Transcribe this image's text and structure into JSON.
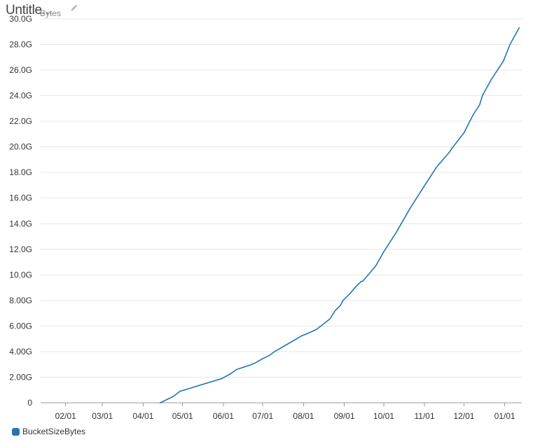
{
  "header": {
    "title": "Untitle...",
    "y_unit": "Bytes",
    "edit_icon": "pencil-icon"
  },
  "colors": {
    "series": "#2176b4",
    "grid": "#e6e6e6",
    "axis": "#999999"
  },
  "chart_data": {
    "type": "line",
    "title": "Untitle...",
    "xlabel": "",
    "ylabel": "Bytes",
    "grid": true,
    "legend_position": "bottom-left",
    "x_tick_labels": [
      "02/01",
      "03/01",
      "04/01",
      "05/01",
      "06/01",
      "07/01",
      "08/01",
      "09/01",
      "10/01",
      "11/01",
      "12/01",
      "01/01"
    ],
    "x_tick_dates": [
      "2017-02-01",
      "2017-03-01",
      "2017-04-01",
      "2017-05-01",
      "2017-06-01",
      "2017-07-01",
      "2017-08-01",
      "2017-09-01",
      "2017-10-01",
      "2017-11-01",
      "2017-12-01",
      "2018-01-01"
    ],
    "xlim": [
      "2017-01-13",
      "2018-01-14"
    ],
    "y_tick_labels": [
      "0",
      "2.00G",
      "4.00G",
      "6.00G",
      "8.00G",
      "10.0G",
      "12.0G",
      "14.0G",
      "16.0G",
      "18.0G",
      "20.0G",
      "22.0G",
      "24.0G",
      "26.0G",
      "28.0G",
      "30.0G"
    ],
    "y_tick_values": [
      0,
      2,
      4,
      6,
      8,
      10,
      12,
      14,
      16,
      18,
      20,
      22,
      24,
      26,
      28,
      30
    ],
    "ylim": [
      0,
      30
    ],
    "y_units": "G bytes",
    "series": [
      {
        "name": "BucketSizeBytes",
        "x": [
          "2017-04-14",
          "2017-04-24",
          "2017-04-29",
          "2017-05-31",
          "2017-06-07",
          "2017-06-11",
          "2017-06-20",
          "2017-06-25",
          "2017-06-30",
          "2017-07-06",
          "2017-07-10",
          "2017-07-20",
          "2017-07-31",
          "2017-08-06",
          "2017-08-11",
          "2017-08-21",
          "2017-08-25",
          "2017-08-29",
          "2017-08-31",
          "2017-09-05",
          "2017-09-10",
          "2017-09-14",
          "2017-09-15",
          "2017-09-20",
          "2017-09-25",
          "2017-10-01",
          "2017-10-11",
          "2017-10-21",
          "2017-10-31",
          "2017-11-10",
          "2017-11-20",
          "2017-11-22",
          "2017-12-01",
          "2017-12-08",
          "2017-12-13",
          "2017-12-15",
          "2017-12-22",
          "2017-12-31",
          "2018-01-05",
          "2018-01-12"
        ],
        "values": [
          0,
          0.5,
          0.9,
          1.9,
          2.3,
          2.6,
          2.9,
          3.1,
          3.4,
          3.7,
          4.0,
          4.6,
          5.25,
          5.5,
          5.75,
          6.55,
          7.2,
          7.6,
          8.0,
          8.5,
          9.1,
          9.5,
          9.5,
          10.1,
          10.7,
          11.8,
          13.4,
          15.2,
          16.8,
          18.4,
          19.6,
          19.9,
          21.1,
          22.5,
          23.3,
          24.0,
          25.3,
          26.7,
          28.0,
          29.3
        ]
      }
    ]
  },
  "legend": {
    "items": [
      {
        "label": "BucketSizeBytes"
      }
    ]
  }
}
